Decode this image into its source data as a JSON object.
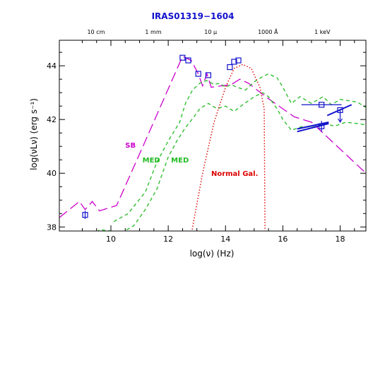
{
  "chart_data": {
    "type": "line",
    "title": "IRAS01319−1604",
    "xlabel": "log(ν) (Hz)",
    "ylabel": "log(νLν) (erg s⁻¹)",
    "xlim": [
      8.2,
      18.9
    ],
    "ylim": [
      37.85,
      44.95
    ],
    "x_ticks": [
      10,
      12,
      14,
      16,
      18
    ],
    "y_ticks": [
      38,
      40,
      42,
      44
    ],
    "top_axis_labels": [
      {
        "label": "10 cm",
        "x": 9.48
      },
      {
        "label": "1 mm",
        "x": 11.48
      },
      {
        "label": "10 μ",
        "x": 13.48
      },
      {
        "label": "1000 Å",
        "x": 15.48
      },
      {
        "label": "1 keV",
        "x": 17.38
      }
    ],
    "annotations": [
      {
        "text": "SB",
        "x": 10.5,
        "y": 40.95,
        "color": "#cc00cc"
      },
      {
        "text": "MED",
        "x": 11.1,
        "y": 40.4,
        "color": "#22bb22"
      },
      {
        "text": "MED",
        "x": 12.1,
        "y": 40.4,
        "color": "#22bb22"
      },
      {
        "text": "Normal Gal.",
        "x": 13.5,
        "y": 39.9,
        "color": "#dd0000"
      }
    ],
    "series": [
      {
        "color": "#cc00cc",
        "dash": "14,6",
        "width": 1.3,
        "points": [
          [
            8.2,
            38.35
          ],
          [
            8.9,
            38.95
          ],
          [
            9.1,
            38.65
          ],
          [
            9.35,
            38.95
          ],
          [
            9.6,
            38.6
          ],
          [
            10.2,
            38.8
          ],
          [
            11.2,
            41.2
          ],
          [
            12.5,
            44.35
          ],
          [
            12.8,
            44.2
          ],
          [
            13.05,
            43.7
          ],
          [
            13.2,
            43.25
          ],
          [
            13.35,
            43.7
          ],
          [
            13.5,
            43.2
          ],
          [
            14.2,
            43.3
          ],
          [
            14.5,
            43.5
          ],
          [
            14.8,
            43.35
          ],
          [
            15.4,
            42.85
          ],
          [
            16,
            42.4
          ],
          [
            16.4,
            42.1
          ],
          [
            17,
            41.9
          ],
          [
            18.9,
            40.0
          ]
        ]
      },
      {
        "color": "#22bb22",
        "dash": "5,4",
        "width": 1.3,
        "points": [
          [
            10.1,
            38.2
          ],
          [
            10.6,
            38.5
          ],
          [
            11.2,
            39.3
          ],
          [
            11.6,
            40.4
          ],
          [
            12.0,
            41.2
          ],
          [
            12.4,
            41.9
          ],
          [
            12.6,
            42.6
          ],
          [
            12.85,
            43.1
          ],
          [
            13.1,
            43.35
          ],
          [
            13.35,
            43.45
          ],
          [
            13.6,
            43.3
          ],
          [
            13.8,
            43.35
          ],
          [
            14.0,
            43.2
          ],
          [
            14.2,
            43.3
          ],
          [
            14.4,
            43.2
          ],
          [
            14.7,
            43.1
          ],
          [
            15.0,
            43.4
          ],
          [
            15.3,
            43.6
          ],
          [
            15.5,
            43.7
          ],
          [
            15.8,
            43.55
          ],
          [
            16.0,
            43.2
          ],
          [
            16.3,
            42.6
          ],
          [
            16.6,
            42.85
          ],
          [
            17.0,
            42.6
          ],
          [
            17.4,
            42.85
          ],
          [
            17.7,
            42.55
          ],
          [
            18.0,
            42.75
          ],
          [
            18.3,
            42.7
          ],
          [
            18.6,
            42.65
          ],
          [
            18.9,
            42.45
          ]
        ]
      },
      {
        "color": "#22bb22",
        "dash": "5,4",
        "width": 1.3,
        "points": [
          [
            9.2,
            37.45
          ],
          [
            9.6,
            37.9
          ],
          [
            10.0,
            37.85
          ],
          [
            10.4,
            37.8
          ],
          [
            10.8,
            38.05
          ],
          [
            11.2,
            38.65
          ],
          [
            11.6,
            39.4
          ],
          [
            12.0,
            40.6
          ],
          [
            12.3,
            41.2
          ],
          [
            12.6,
            41.7
          ],
          [
            12.9,
            42.1
          ],
          [
            13.1,
            42.4
          ],
          [
            13.4,
            42.6
          ],
          [
            13.7,
            42.4
          ],
          [
            14.0,
            42.5
          ],
          [
            14.3,
            42.3
          ],
          [
            14.6,
            42.55
          ],
          [
            15.0,
            42.85
          ],
          [
            15.3,
            43.0
          ],
          [
            15.5,
            42.85
          ],
          [
            15.8,
            42.4
          ],
          [
            16.0,
            42.0
          ],
          [
            16.3,
            41.6
          ],
          [
            16.7,
            41.75
          ],
          [
            17.0,
            41.7
          ],
          [
            17.5,
            41.85
          ],
          [
            17.8,
            41.75
          ],
          [
            18.2,
            41.9
          ],
          [
            18.6,
            41.85
          ],
          [
            18.9,
            41.8
          ]
        ]
      },
      {
        "color": "#dd0000",
        "dash": "1.5,2.5",
        "width": 1.4,
        "points": [
          [
            12.8,
            37.7
          ],
          [
            13.2,
            40.0
          ],
          [
            13.6,
            41.9
          ],
          [
            14.0,
            43.2
          ],
          [
            14.3,
            43.9
          ],
          [
            14.6,
            44.05
          ],
          [
            14.9,
            43.9
          ],
          [
            15.2,
            43.2
          ],
          [
            15.35,
            42.4
          ],
          [
            15.38,
            37.6
          ]
        ]
      }
    ],
    "data_points": [
      {
        "x": 9.1,
        "y": 38.45,
        "yerr": 0.15
      },
      {
        "x": 12.5,
        "y": 44.3
      },
      {
        "x": 12.7,
        "y": 44.2
      },
      {
        "x": 13.05,
        "y": 43.7
      },
      {
        "x": 13.4,
        "y": 43.65
      },
      {
        "x": 14.15,
        "y": 43.95
      },
      {
        "x": 14.3,
        "y": 44.15
      },
      {
        "x": 14.45,
        "y": 44.2
      },
      {
        "x": 17.35,
        "y": 42.55,
        "xerr": 0.7
      },
      {
        "x": 17.35,
        "y": 41.75,
        "yerr": 0.2
      },
      {
        "x": 18.0,
        "y": 42.35,
        "upper_limit": true
      }
    ],
    "xray_slopes": [
      {
        "x1": 16.5,
        "y1": 41.55,
        "x2": 17.6,
        "y2": 41.85
      },
      {
        "x1": 16.5,
        "y1": 41.65,
        "x2": 17.6,
        "y2": 41.9
      },
      {
        "x1": 17.55,
        "y1": 42.15,
        "x2": 18.4,
        "y2": 42.55
      }
    ],
    "marker_color": "#1111cc",
    "axis_color": "#000000"
  }
}
